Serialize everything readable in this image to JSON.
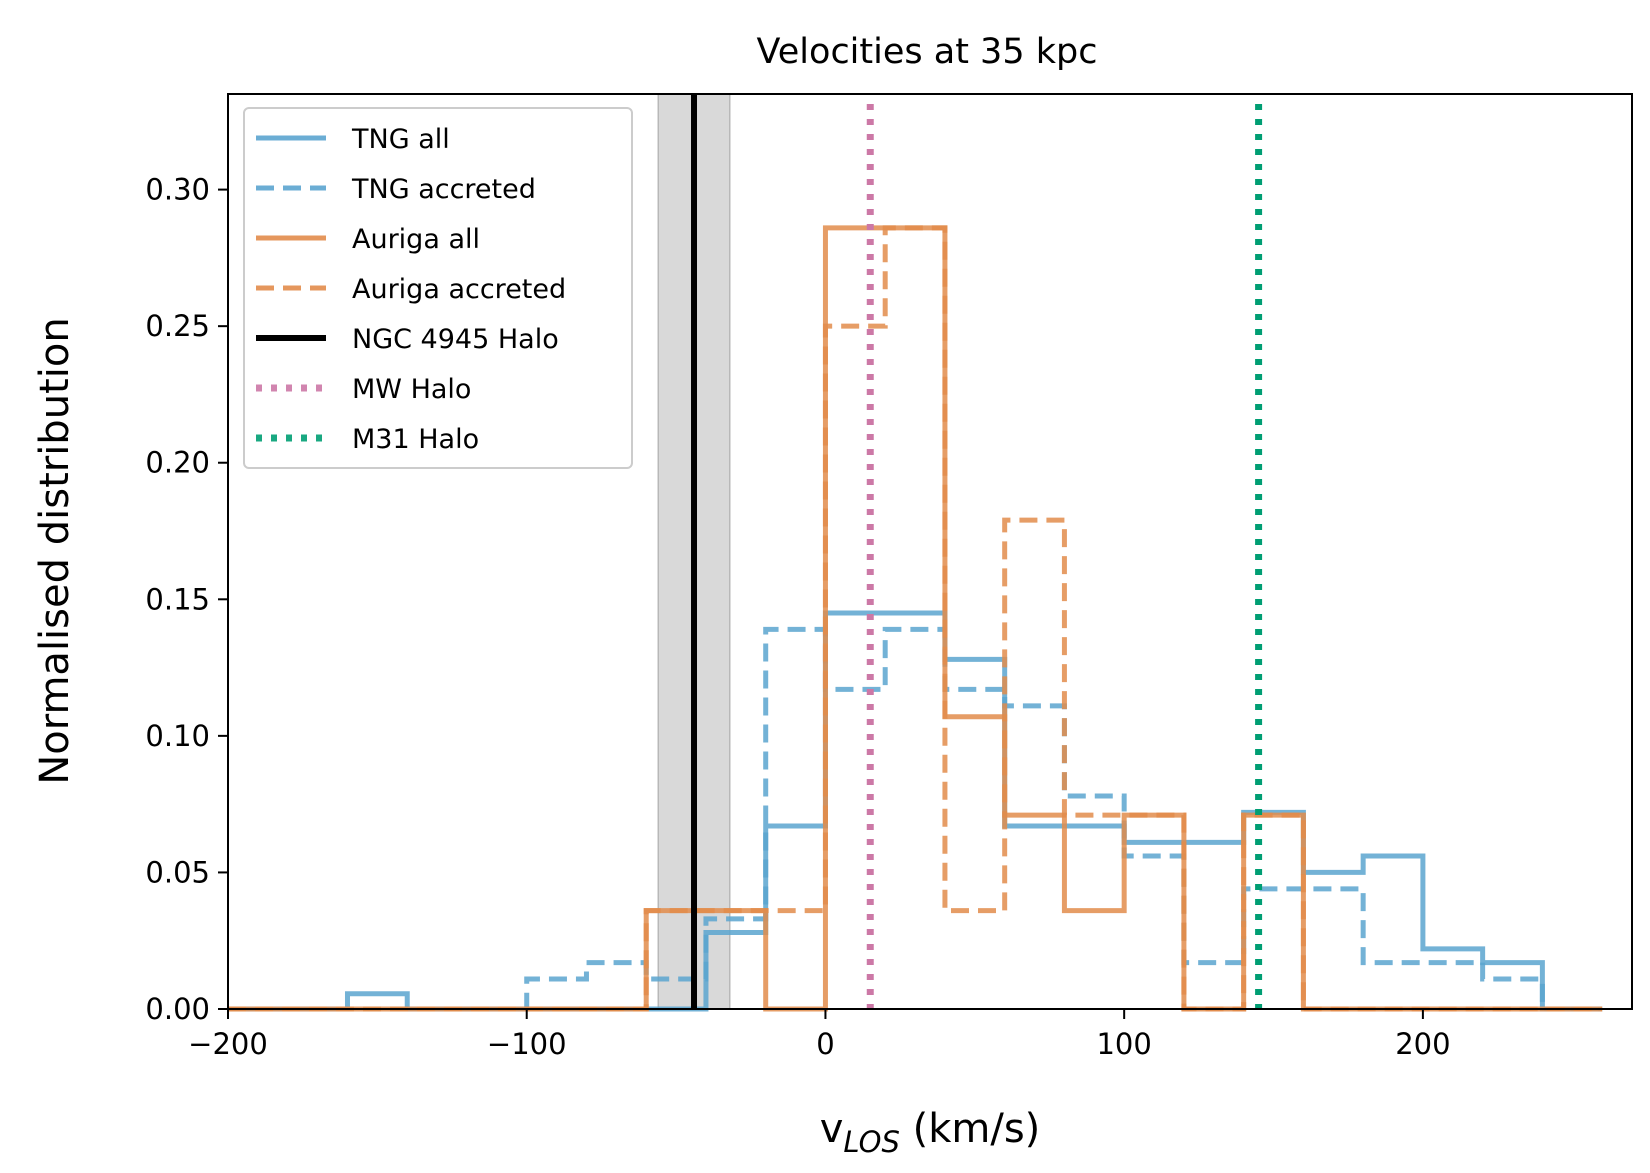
{
  "chart_data": {
    "type": "histogram",
    "title": "Velocities at 35 kpc",
    "xlabel_main": "v",
    "xlabel_sub": "LOS",
    "xlabel_unit": " (km/s)",
    "ylabel": "Normalised distribution",
    "xlim": [
      -200,
      270
    ],
    "ylim": [
      0,
      0.335
    ],
    "x_ticks": [
      -200,
      -100,
      0,
      100,
      200
    ],
    "x_tick_labels": [
      "−200",
      "−100",
      "0",
      "100",
      "200"
    ],
    "y_ticks": [
      0,
      0.05,
      0.1,
      0.15,
      0.2,
      0.25,
      0.3
    ],
    "y_tick_labels": [
      "0.00",
      "0.05",
      "0.10",
      "0.15",
      "0.20",
      "0.25",
      "0.30"
    ],
    "grid": false,
    "legend_position": "top-left",
    "bin_edges": [
      -200,
      -180,
      -160,
      -140,
      -120,
      -100,
      -80,
      -60,
      -40,
      -20,
      0,
      20,
      40,
      60,
      80,
      100,
      120,
      140,
      160,
      180,
      200,
      220,
      240,
      260
    ],
    "series": [
      {
        "name": "TNG all",
        "color": "#5ba4cf",
        "style": "solid",
        "values": [
          0,
          0,
          0.0056,
          0,
          0,
          0,
          0,
          0,
          0.028,
          0.067,
          0.145,
          0.145,
          0.128,
          0.067,
          0.067,
          0.061,
          0.061,
          0.072,
          0.05,
          0.056,
          0.022,
          0.017,
          0
        ]
      },
      {
        "name": "TNG accreted",
        "color": "#5ba4cf",
        "style": "dashed",
        "values": [
          0,
          0,
          0,
          0,
          0,
          0.011,
          0.017,
          0.011,
          0.033,
          0.139,
          0.117,
          0.139,
          0.117,
          0.111,
          0.078,
          0.056,
          0.017,
          0.044,
          0.044,
          0.017,
          0.017,
          0.011,
          0
        ]
      },
      {
        "name": "Auriga all",
        "color": "#e28c4b",
        "style": "solid",
        "values": [
          0,
          0,
          0,
          0,
          0,
          0,
          0,
          0.036,
          0.036,
          0,
          0.286,
          0.286,
          0.107,
          0.071,
          0.036,
          0.071,
          0,
          0.071,
          0,
          0,
          0,
          0,
          0
        ]
      },
      {
        "name": "Auriga accreted",
        "color": "#e28c4b",
        "style": "dashed",
        "values": [
          0,
          0,
          0,
          0,
          0,
          0,
          0,
          0.036,
          0.036,
          0.036,
          0.25,
          0.286,
          0.036,
          0.179,
          0.071,
          0.071,
          0,
          0.071,
          0,
          0,
          0,
          0,
          0
        ]
      }
    ],
    "vertical_lines": [
      {
        "name": "NGC 4945 Halo",
        "x": -44,
        "band": [
          -56,
          -32
        ],
        "color": "#000000",
        "style": "solid"
      },
      {
        "name": "MW Halo",
        "x": 15,
        "color": "#cc78a6",
        "style": "dotted"
      },
      {
        "name": "M31 Halo",
        "x": 145,
        "color": "#009e73",
        "style": "dotted"
      }
    ]
  }
}
